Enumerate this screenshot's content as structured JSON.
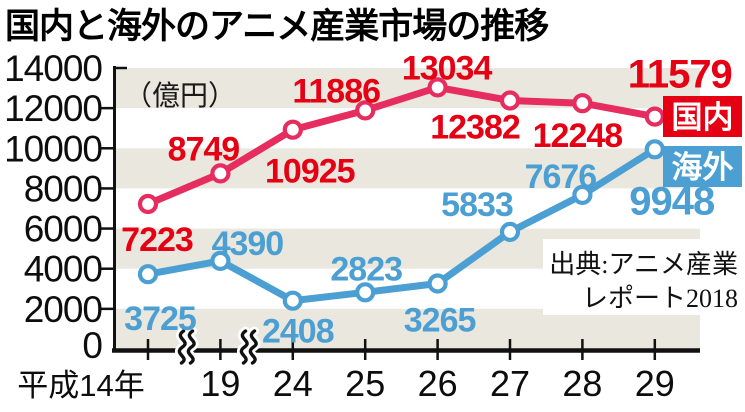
{
  "title": "国内と海外のアニメ産業市場の推移",
  "unit_label": "（億円）",
  "legend": {
    "domestic": "国内",
    "overseas": "海外"
  },
  "source": {
    "line1": "出典:アニメ産業",
    "line2": "レポート2018"
  },
  "colors": {
    "domestic_line": "#e62d5f",
    "domestic_label": "#e50014",
    "domestic_badge_bg": "#e50014",
    "overseas_line": "#4b9fd2",
    "overseas_label": "#4b9fd2",
    "overseas_badge_bg": "#4b9fd2",
    "badge_text": "#ffffff",
    "stripe_band": "#eae7de",
    "axis": "#111111",
    "background": "#ffffff"
  },
  "chart_data": {
    "type": "line",
    "title": "国内と海外のアニメ産業市場の推移",
    "unit": "億円",
    "categories": [
      "平成14年",
      "19",
      "24",
      "25",
      "26",
      "27",
      "28",
      "29"
    ],
    "x_axis_breaks_between": [
      [
        "平成14年",
        "19"
      ],
      [
        "19",
        "24"
      ]
    ],
    "series": [
      {
        "name": "国内",
        "values": [
          7223,
          8749,
          10925,
          11886,
          13034,
          12382,
          12248,
          11579
        ]
      },
      {
        "name": "海外",
        "values": [
          3725,
          4390,
          2408,
          2823,
          3265,
          5833,
          7676,
          9948
        ]
      }
    ],
    "ylim": [
      0,
      14000
    ],
    "y_ticks": [
      0,
      2000,
      4000,
      6000,
      8000,
      10000,
      12000,
      14000
    ],
    "grid": "alternating horizontal bands every 2000",
    "legend_position": "right",
    "source": "出典:アニメ産業レポート2018"
  }
}
